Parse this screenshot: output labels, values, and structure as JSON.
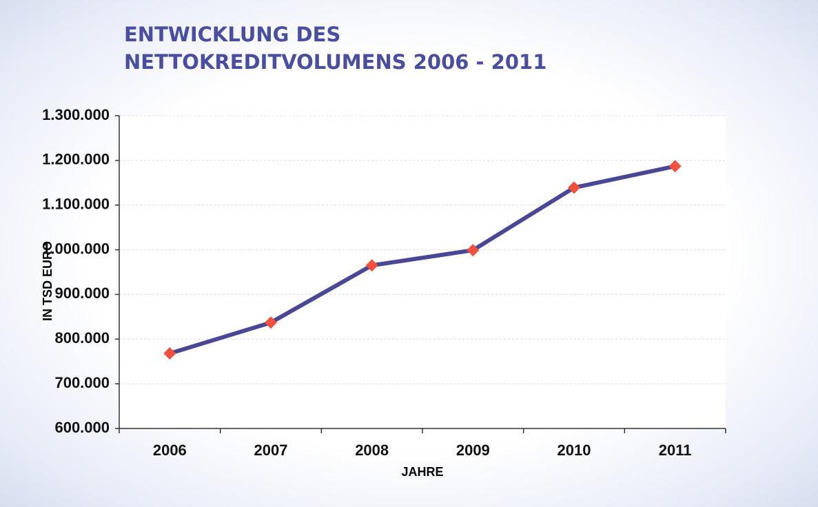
{
  "chart_data": {
    "type": "line",
    "title": [
      "ENTWICKLUNG DES",
      "NETTOKREDITVOLUMENS 2006 - 2011"
    ],
    "y_label": "IN TSD EURO",
    "x_label": "JAHRE",
    "categories": [
      "2006",
      "2007",
      "2008",
      "2009",
      "2010",
      "2011"
    ],
    "series": [
      {
        "name": "Nettokreditvolumen",
        "color": "#4a4896",
        "marker_color": "#f0503c",
        "values": [
          768000,
          837000,
          965000,
          999000,
          1139000,
          1187000
        ]
      }
    ],
    "ylim": [
      600000,
      1300000
    ],
    "yticks": [
      {
        "value": 600000,
        "label": "600.000"
      },
      {
        "value": 700000,
        "label": "700.000"
      },
      {
        "value": 800000,
        "label": "800.000"
      },
      {
        "value": 900000,
        "label": "900.000"
      },
      {
        "value": 1000000,
        "label": "1.000.000"
      },
      {
        "value": 1100000,
        "label": "1.100.000"
      },
      {
        "value": 1200000,
        "label": "1.200.000"
      },
      {
        "value": 1300000,
        "label": "1.300.000"
      }
    ],
    "grid": true,
    "legend": false
  }
}
